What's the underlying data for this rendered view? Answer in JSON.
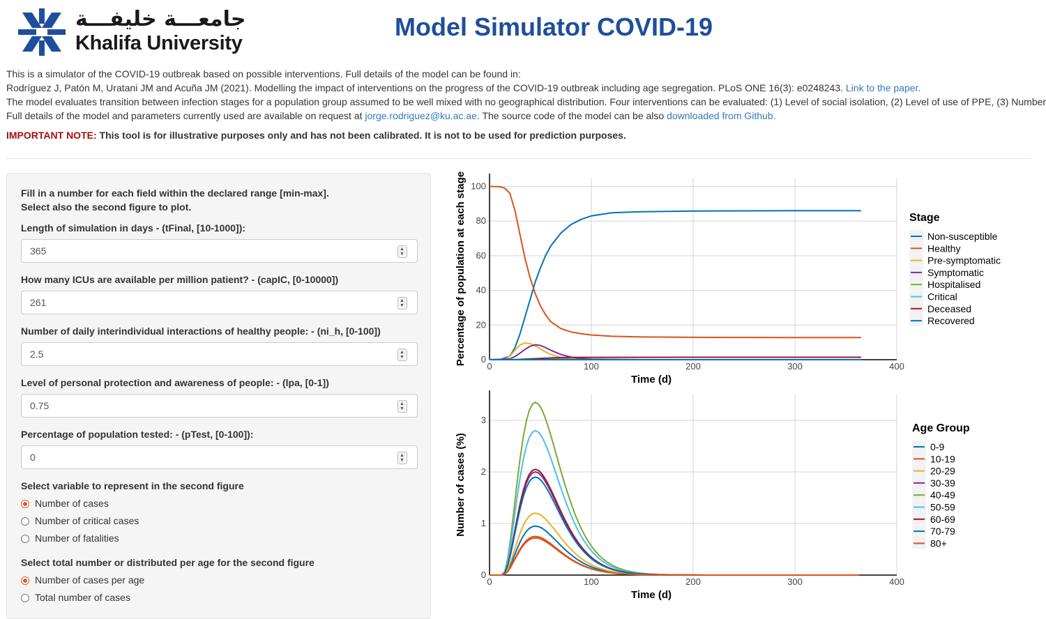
{
  "header": {
    "logo_arabic": "جامعـــة خليفـــة",
    "logo_name": "Khalifa University",
    "title": "Model Simulator COVID-19"
  },
  "intro": {
    "line1": "This is a simulator of the COVID-19 outbreak based on possible interventions. Full details of the model can be found in:",
    "line2": "Rodríguez J, Patón M, Uratani JM and Acuña JM (2021). Modelling the impact of interventions on the progress of the COVID-19 outbreak including age segregation. PLoS ONE 16(3): e0248243. ",
    "paper_link": "Link to the paper.",
    "line3": "The model evaluates transition between infection stages for a population group assumed to be well mixed with no geographical distribution. Four interventions can be evaluated: (1) Level of social isolation, (2) Level of use of PPE, (3) Number",
    "line4a": "Full details of the model and parameters currently used are available on request at ",
    "email": "jorge.rodriguez@ku.ac.ae",
    "line4b": ". The source code of the model can be also ",
    "github_link": "downloaded from Github."
  },
  "note": {
    "label": "IMPORTANT NOTE:",
    "text": " This tool is for illustrative purposes only and has not been calibrated. It is not to be used for prediction purposes."
  },
  "panel": {
    "instructions_1": "Fill in a number for each field within the declared range [min-max].",
    "instructions_2": "Select also the second figure to plot.",
    "fields": [
      {
        "label": "Length of simulation in days - (tFinal, [10-1000]):",
        "value": "365"
      },
      {
        "label": "How many ICUs are available per million patient? - (capIC, [0-10000])",
        "value": "261"
      },
      {
        "label": "Number of daily interindividual interactions of healthy people: - (ni_h, [0-100])",
        "value": "2.5"
      },
      {
        "label": "Level of personal protection and awareness of people: - (lpa, [0-1])",
        "value": "0.75"
      },
      {
        "label": "Percentage of population tested: - (pTest, [0-100]):",
        "value": "0"
      }
    ],
    "variable_label": "Select variable to represent in the second figure",
    "variable_options": [
      "Number of cases",
      "Number of critical cases",
      "Number of fatalities"
    ],
    "variable_selected": 0,
    "distribution_label": "Select total number or distributed per age for the second figure",
    "distribution_options": [
      "Number of cases per age",
      "Total number of cases"
    ],
    "distribution_selected": 0
  },
  "chart_data": [
    {
      "type": "line",
      "xlabel": "Time (d)",
      "ylabel": "Percentage of population at each stage",
      "xlim": [
        0,
        400
      ],
      "ylim": [
        0,
        105
      ],
      "xticks": [
        0,
        100,
        200,
        300,
        400
      ],
      "yticks": [
        0,
        20,
        40,
        60,
        80,
        100
      ],
      "grid": true,
      "legend_title": "Stage",
      "legend_position": "right",
      "series": [
        {
          "name": "Non-susceptible",
          "color": "#0072BD",
          "points": [
            [
              0,
              0
            ],
            [
              10,
              0
            ],
            [
              20,
              2
            ],
            [
              25,
              7
            ],
            [
              30,
              15
            ],
            [
              35,
              25
            ],
            [
              40,
              35
            ],
            [
              45,
              45
            ],
            [
              50,
              53
            ],
            [
              55,
              60
            ],
            [
              60,
              65.5
            ],
            [
              70,
              73
            ],
            [
              80,
              78
            ],
            [
              90,
              81
            ],
            [
              100,
              83
            ],
            [
              120,
              84.8
            ],
            [
              150,
              85.4
            ],
            [
              200,
              85.8
            ],
            [
              250,
              85.9
            ],
            [
              300,
              86
            ],
            [
              365,
              86
            ]
          ]
        },
        {
          "name": "Healthy",
          "color": "#D95319",
          "points": [
            [
              0,
              100
            ],
            [
              10,
              99.8
            ],
            [
              15,
              99
            ],
            [
              20,
              96
            ],
            [
              25,
              86
            ],
            [
              30,
              72
            ],
            [
              35,
              58
            ],
            [
              40,
              47
            ],
            [
              45,
              38
            ],
            [
              50,
              31
            ],
            [
              55,
              26
            ],
            [
              60,
              22
            ],
            [
              70,
              18
            ],
            [
              80,
              16
            ],
            [
              90,
              15
            ],
            [
              100,
              14.3
            ],
            [
              120,
              13.5
            ],
            [
              150,
              13.1
            ],
            [
              200,
              12.9
            ],
            [
              300,
              12.8
            ],
            [
              365,
              12.8
            ]
          ]
        },
        {
          "name": "Pre-symptomatic",
          "color": "#EDB120",
          "points": [
            [
              0,
              0
            ],
            [
              15,
              0.3
            ],
            [
              20,
              2
            ],
            [
              25,
              5.5
            ],
            [
              30,
              8.5
            ],
            [
              35,
              9.7
            ],
            [
              40,
              9.3
            ],
            [
              45,
              8
            ],
            [
              50,
              6.2
            ],
            [
              55,
              4.5
            ],
            [
              60,
              3
            ],
            [
              70,
              1.2
            ],
            [
              80,
              0.5
            ],
            [
              100,
              0.1
            ],
            [
              150,
              0
            ],
            [
              365,
              0
            ]
          ]
        },
        {
          "name": "Symptomatic",
          "color": "#7E2F8E",
          "points": [
            [
              0,
              0
            ],
            [
              20,
              0.5
            ],
            [
              25,
              1.8
            ],
            [
              30,
              3.8
            ],
            [
              35,
              6
            ],
            [
              40,
              7.8
            ],
            [
              45,
              8.6
            ],
            [
              50,
              8.2
            ],
            [
              55,
              7
            ],
            [
              60,
              5.5
            ],
            [
              70,
              3
            ],
            [
              80,
              1.5
            ],
            [
              90,
              0.7
            ],
            [
              100,
              0.3
            ],
            [
              150,
              0
            ],
            [
              365,
              0
            ]
          ]
        },
        {
          "name": "Hospitalised",
          "color": "#77AC30",
          "points": [
            [
              0,
              0
            ],
            [
              25,
              0.1
            ],
            [
              30,
              0.3
            ],
            [
              40,
              0.6
            ],
            [
              50,
              0.7
            ],
            [
              60,
              0.55
            ],
            [
              70,
              0.35
            ],
            [
              80,
              0.2
            ],
            [
              100,
              0.05
            ],
            [
              150,
              0
            ],
            [
              365,
              0
            ]
          ]
        },
        {
          "name": "Critical",
          "color": "#4DBEEE",
          "points": [
            [
              0,
              0
            ],
            [
              30,
              0.1
            ],
            [
              45,
              0.2
            ],
            [
              60,
              0.15
            ],
            [
              80,
              0.05
            ],
            [
              100,
              0
            ],
            [
              365,
              0
            ]
          ]
        },
        {
          "name": "Deceased",
          "color": "#A2142F",
          "points": [
            [
              0,
              0
            ],
            [
              30,
              0.05
            ],
            [
              40,
              0.3
            ],
            [
              50,
              0.7
            ],
            [
              60,
              1
            ],
            [
              70,
              1.2
            ],
            [
              80,
              1.3
            ],
            [
              100,
              1.35
            ],
            [
              200,
              1.4
            ],
            [
              365,
              1.4
            ]
          ]
        },
        {
          "name": "Recovered",
          "color": "#0072BD",
          "points": [
            [
              0,
              0
            ],
            [
              365,
              0
            ]
          ]
        }
      ]
    },
    {
      "type": "line",
      "xlabel": "Time (d)",
      "ylabel": "Number of cases (%)",
      "xlim": [
        0,
        400
      ],
      "ylim": [
        0,
        3.5
      ],
      "xticks": [
        0,
        100,
        200,
        300,
        400
      ],
      "yticks": [
        0,
        1,
        2,
        3
      ],
      "grid": true,
      "legend_title": "Age Group",
      "legend_position": "right",
      "series": [
        {
          "name": "0-9",
          "color": "#0072BD",
          "peak": 0.95
        },
        {
          "name": "10-19",
          "color": "#D95319",
          "peak": 0.75
        },
        {
          "name": "20-29",
          "color": "#EDB120",
          "peak": 1.2
        },
        {
          "name": "30-39",
          "color": "#7E2F8E",
          "peak": 2.0
        },
        {
          "name": "40-49",
          "color": "#77AC30",
          "peak": 3.35
        },
        {
          "name": "50-59",
          "color": "#4DBEEE",
          "peak": 2.8
        },
        {
          "name": "60-69",
          "color": "#A2142F",
          "peak": 2.05
        },
        {
          "name": "70-79",
          "color": "#0072BD",
          "peak": 1.9
        },
        {
          "name": "80+",
          "color": "#D95319",
          "peak": 0.72
        }
      ],
      "peak_day": 45
    }
  ]
}
